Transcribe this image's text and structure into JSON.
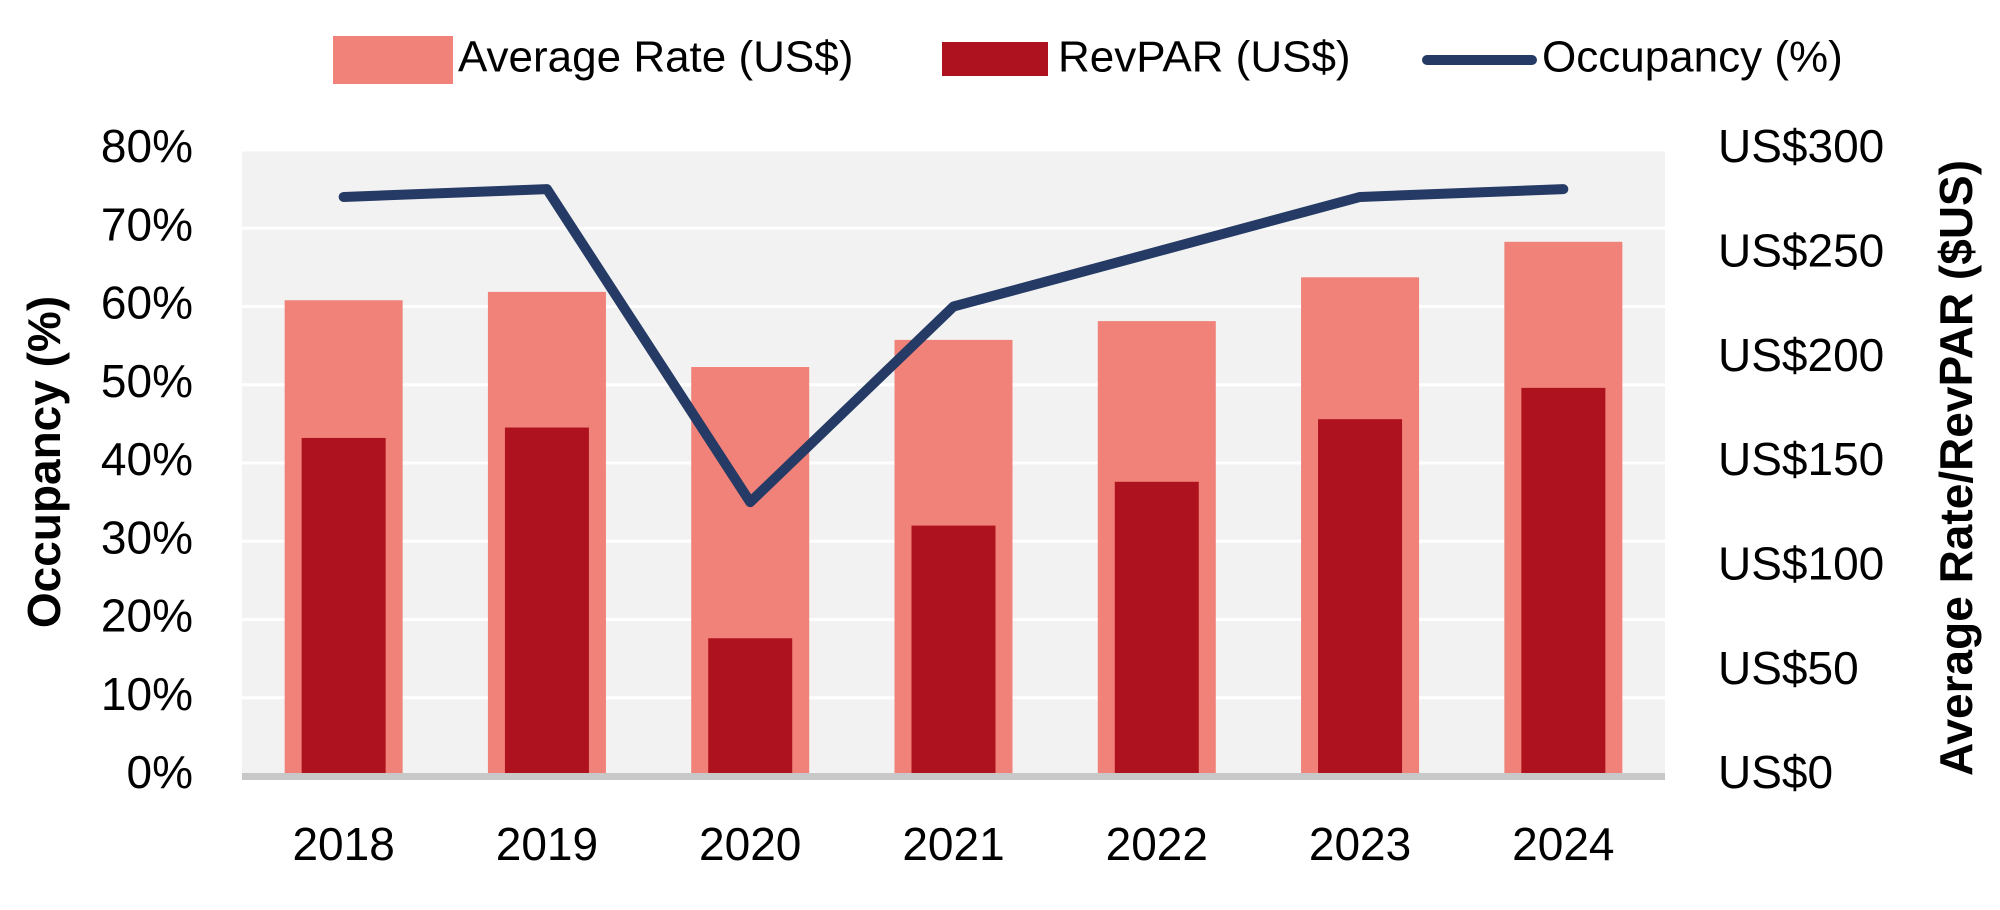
{
  "chart_data": {
    "type": "bar",
    "categories": [
      "2018",
      "2019",
      "2020",
      "2021",
      "2022",
      "2023",
      "2024"
    ],
    "series": [
      {
        "name": "Average Rate (US$)",
        "kind": "bar",
        "axis": "right",
        "color": "#F08279",
        "values": [
          228,
          232,
          196,
          209,
          218,
          239,
          256
        ]
      },
      {
        "name": "RevPAR (US$)",
        "kind": "bar",
        "axis": "right",
        "color": "#AF121F",
        "values": [
          162,
          167,
          66,
          120,
          141,
          171,
          186
        ]
      },
      {
        "name": "Occupancy (%)",
        "kind": "line",
        "axis": "left",
        "color": "#253A64",
        "values": [
          74,
          75,
          35,
          60,
          67,
          74,
          75
        ]
      }
    ],
    "left_axis": {
      "label": "Occupancy (%)",
      "min": 0,
      "max": 80,
      "step": 10,
      "ticks": [
        "0%",
        "10%",
        "20%",
        "30%",
        "40%",
        "50%",
        "60%",
        "70%",
        "80%"
      ]
    },
    "right_axis": {
      "label": "Average Rate/RevPAR ($US)",
      "min": 0,
      "max": 300,
      "step": 50,
      "ticks": [
        "US$0",
        "US$50",
        "US$100",
        "US$150",
        "US$200",
        "US$250",
        "US$300"
      ]
    },
    "grid": true,
    "legend": "top-center",
    "plot_background": "#F2F2F2",
    "gridline_color": "#FFFFFF",
    "baseline_color": "#C8C8C8"
  }
}
